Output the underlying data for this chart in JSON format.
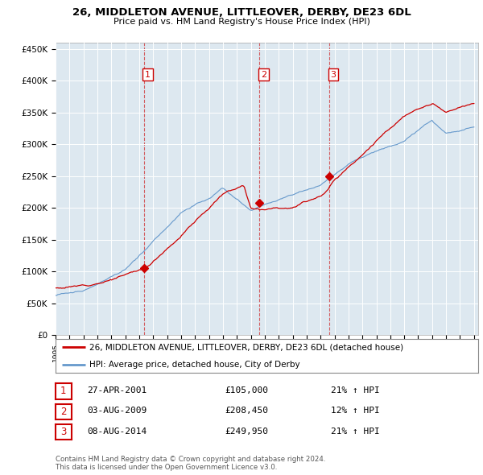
{
  "title": "26, MIDDLETON AVENUE, LITTLEOVER, DERBY, DE23 6DL",
  "subtitle": "Price paid vs. HM Land Registry's House Price Index (HPI)",
  "ylim": [
    0,
    460000
  ],
  "yticks": [
    0,
    50000,
    100000,
    150000,
    200000,
    250000,
    300000,
    350000,
    400000,
    450000
  ],
  "ytick_labels": [
    "£0",
    "£50K",
    "£100K",
    "£150K",
    "£200K",
    "£250K",
    "£300K",
    "£350K",
    "£400K",
    "£450K"
  ],
  "sale_dates_num": [
    2001.32,
    2009.6,
    2014.6
  ],
  "sale_prices": [
    105000,
    208450,
    249950
  ],
  "sale_labels": [
    "1",
    "2",
    "3"
  ],
  "property_color": "#cc0000",
  "hpi_color": "#6699cc",
  "chart_bg": "#dde8f0",
  "legend_property": "26, MIDDLETON AVENUE, LITTLEOVER, DERBY, DE23 6DL (detached house)",
  "legend_hpi": "HPI: Average price, detached house, City of Derby",
  "table_rows": [
    [
      "1",
      "27-APR-2001",
      "£105,000",
      "21% ↑ HPI"
    ],
    [
      "2",
      "03-AUG-2009",
      "£208,450",
      "12% ↑ HPI"
    ],
    [
      "3",
      "08-AUG-2014",
      "£249,950",
      "21% ↑ HPI"
    ]
  ],
  "footer": "Contains HM Land Registry data © Crown copyright and database right 2024.\nThis data is licensed under the Open Government Licence v3.0.",
  "background_color": "#ffffff"
}
